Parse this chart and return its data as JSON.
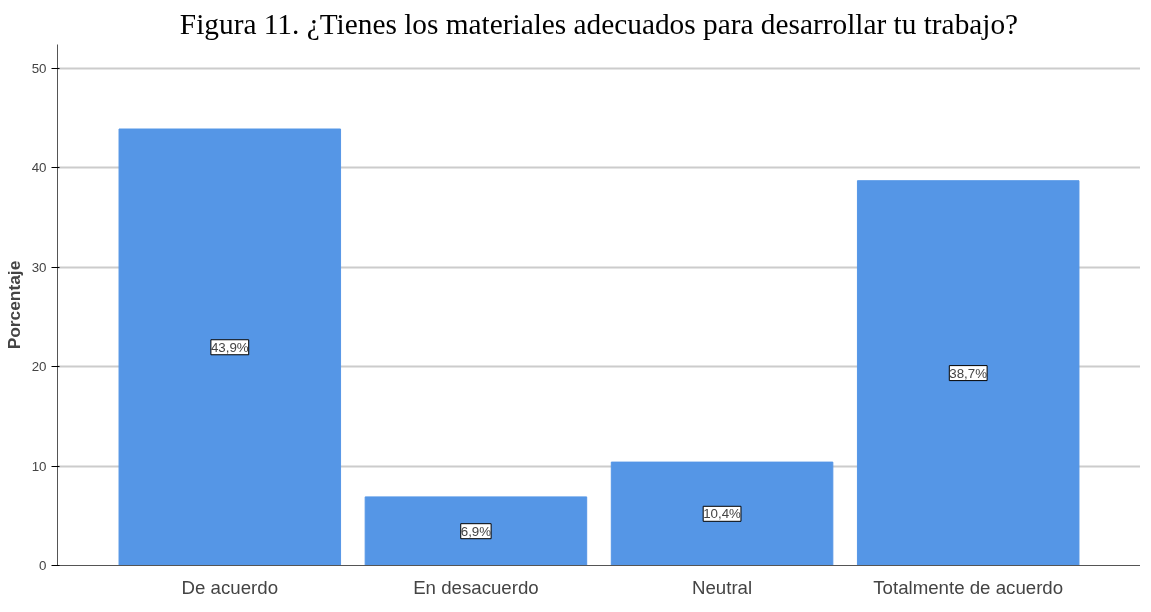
{
  "chart_data": {
    "type": "bar",
    "title": "Figura 11. ¿Tienes los materiales adecuados para desarrollar tu trabajo?",
    "ylabel": "Porcentaje",
    "categories": [
      "De acuerdo",
      "En desacuerdo",
      "Neutral",
      "Totalmente de acuerdo"
    ],
    "values": [
      43.9,
      6.9,
      10.4,
      38.7
    ],
    "color": "#5596e6",
    "value_labels": [
      "43,9%",
      "6,9%",
      "10,4%",
      "38,7%"
    ],
    "ylim": [
      0,
      52.4
    ],
    "yticks": [
      0,
      10,
      20,
      30,
      40,
      50
    ],
    "grid": "y"
  }
}
